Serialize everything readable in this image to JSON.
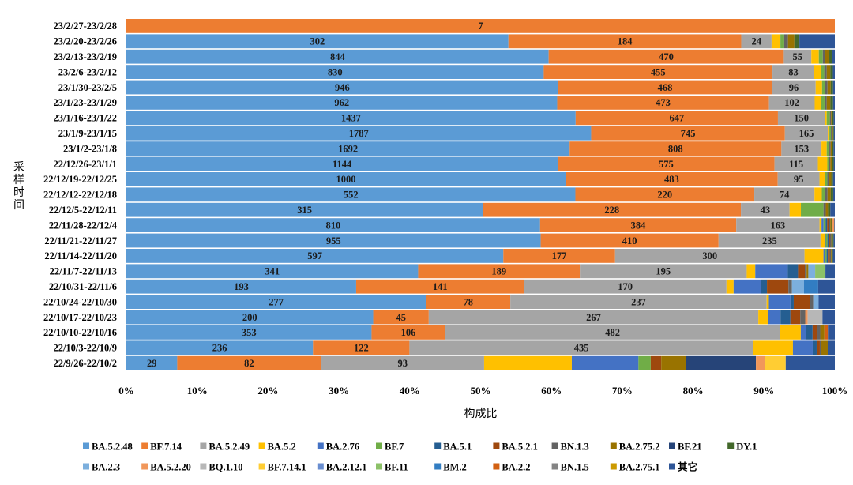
{
  "chart_data": {
    "type": "bar",
    "orientation": "horizontal",
    "stacking": "percent",
    "xlabel": "构成比",
    "ylabel": "采样时间",
    "xlim": [
      0,
      100
    ],
    "x_ticks": [
      "0%",
      "10%",
      "20%",
      "30%",
      "40%",
      "50%",
      "60%",
      "70%",
      "80%",
      "90%",
      "100%"
    ],
    "legend_position": "bottom",
    "categories": [
      "23/2/27-23/2/28",
      "23/2/20-23/2/26",
      "23/2/13-23/2/19",
      "23/2/6-23/2/12",
      "23/1/30-23/2/5",
      "23/1/23-23/1/29",
      "23/1/16-23/1/22",
      "23/1/9-23/1/15",
      "23/1/2-23/1/8",
      "22/12/26-23/1/1",
      "22/12/19-22/12/25",
      "22/12/12-22/12/18",
      "22/12/5-22/12/11",
      "22/11/28-22/12/4",
      "22/11/21-22/11/27",
      "22/11/14-22/11/20",
      "22/11/7-22/11/13",
      "22/10/31-22/11/6",
      "22/10/24-22/10/30",
      "22/10/17-22/10/23",
      "22/10/10-22/10/16",
      "22/10/3-22/10/9",
      "22/9/26-22/10/2"
    ],
    "series": [
      {
        "name": "BA.5.2.48",
        "color": "#5b9bd5",
        "values": [
          0,
          302,
          844,
          830,
          946,
          962,
          1437,
          1787,
          1692,
          1144,
          1000,
          552,
          315,
          810,
          955,
          597,
          341,
          193,
          277,
          200,
          353,
          236,
          29
        ]
      },
      {
        "name": "BF.7.14",
        "color": "#ed7d31",
        "values": [
          7,
          184,
          470,
          455,
          468,
          473,
          647,
          745,
          808,
          575,
          483,
          220,
          228,
          384,
          410,
          177,
          189,
          141,
          78,
          45,
          106,
          122,
          82
        ]
      },
      {
        "name": "BA.5.2.49",
        "color": "#a5a5a5",
        "values": [
          0,
          24,
          55,
          83,
          96,
          102,
          150,
          165,
          153,
          115,
          95,
          74,
          43,
          163,
          235,
          300,
          195,
          170,
          237,
          267,
          482,
          435,
          93
        ]
      },
      {
        "name": "BA.5.2",
        "color": "#ffc000",
        "values": [
          0,
          7,
          15,
          14,
          14,
          15,
          6,
          6,
          20,
          25,
          13,
          9,
          10,
          4,
          10,
          30,
          10,
          6,
          2,
          8,
          30,
          50,
          50
        ]
      },
      {
        "name": "BA.2.76",
        "color": "#4472c4",
        "values": [
          0,
          0,
          0,
          0,
          0,
          0,
          0,
          0,
          0,
          0,
          0,
          0,
          0,
          4,
          2,
          3,
          38,
          23,
          20,
          10,
          7,
          25,
          38
        ]
      },
      {
        "name": "BF.7",
        "color": "#70ad47",
        "values": [
          0,
          3,
          8,
          6,
          7,
          7,
          10,
          6,
          10,
          4,
          5,
          4,
          20,
          4,
          4,
          2,
          0,
          0,
          0,
          0,
          0,
          0,
          7
        ]
      },
      {
        "name": "BA.5.1",
        "color": "#255e91",
        "values": [
          0,
          0,
          0,
          0,
          0,
          0,
          0,
          0,
          0,
          0,
          0,
          0,
          0,
          3,
          3,
          2,
          12,
          5,
          3,
          8,
          10,
          5,
          0
        ]
      },
      {
        "name": "BA.5.2.1",
        "color": "#9e480e",
        "values": [
          0,
          0,
          0,
          0,
          0,
          0,
          0,
          0,
          0,
          0,
          0,
          0,
          0,
          3,
          3,
          3,
          8,
          18,
          15,
          8,
          7,
          4,
          6
        ]
      },
      {
        "name": "BN.1.3",
        "color": "#636363",
        "values": [
          0,
          3,
          5,
          5,
          5,
          5,
          4,
          4,
          5,
          4,
          4,
          3,
          2,
          3,
          3,
          2,
          2,
          3,
          3,
          4,
          4,
          2,
          0
        ]
      },
      {
        "name": "BA.2.75.2",
        "color": "#997300",
        "values": [
          0,
          5,
          8,
          7,
          7,
          8,
          4,
          4,
          6,
          5,
          5,
          4,
          2,
          2,
          3,
          2,
          2,
          0,
          0,
          0,
          6,
          8,
          14
        ]
      },
      {
        "name": "BF.21",
        "color": "#264478",
        "values": [
          0,
          0,
          0,
          0,
          0,
          0,
          0,
          0,
          0,
          0,
          0,
          0,
          0,
          0,
          0,
          0,
          0,
          0,
          0,
          0,
          0,
          0,
          40
        ]
      },
      {
        "name": "DY.1",
        "color": "#43682b",
        "values": [
          0,
          4,
          6,
          5,
          5,
          6,
          4,
          3,
          5,
          4,
          4,
          3,
          2,
          2,
          2,
          1,
          0,
          0,
          0,
          0,
          0,
          0,
          0
        ]
      },
      {
        "name": "BA.2.3",
        "color": "#7cafdd",
        "values": [
          0,
          0,
          0,
          0,
          0,
          0,
          0,
          0,
          0,
          0,
          0,
          0,
          0,
          0,
          0,
          0,
          8,
          10,
          5,
          0,
          0,
          0,
          0
        ]
      },
      {
        "name": "BA.5.2.20",
        "color": "#f1975a",
        "values": [
          0,
          0,
          0,
          0,
          0,
          0,
          0,
          0,
          0,
          0,
          0,
          0,
          0,
          4,
          0,
          0,
          0,
          0,
          0,
          2,
          0,
          0,
          5
        ]
      },
      {
        "name": "BQ.1.10",
        "color": "#b7b7b7",
        "values": [
          0,
          0,
          0,
          0,
          0,
          0,
          0,
          0,
          0,
          0,
          0,
          0,
          0,
          0,
          0,
          0,
          0,
          0,
          0,
          12,
          0,
          0,
          0
        ]
      },
      {
        "name": "BF.7.14.1",
        "color": "#ffcd33",
        "values": [
          0,
          0,
          0,
          0,
          0,
          0,
          0,
          0,
          0,
          0,
          0,
          0,
          0,
          0,
          0,
          0,
          0,
          0,
          0,
          0,
          0,
          0,
          12
        ]
      },
      {
        "name": "BA.2.12.1",
        "color": "#698ed0",
        "values": [
          0,
          0,
          0,
          0,
          0,
          0,
          0,
          0,
          0,
          0,
          0,
          0,
          0,
          0,
          0,
          0,
          0,
          0,
          0,
          0,
          0,
          0,
          0
        ]
      },
      {
        "name": "BF.11",
        "color": "#8cc168",
        "values": [
          0,
          0,
          0,
          0,
          0,
          0,
          0,
          0,
          0,
          0,
          0,
          0,
          0,
          0,
          0,
          0,
          12,
          0,
          0,
          0,
          0,
          0,
          0
        ]
      },
      {
        "name": "BM.2",
        "color": "#327dc2",
        "values": [
          0,
          0,
          0,
          0,
          0,
          0,
          0,
          0,
          0,
          0,
          0,
          0,
          0,
          0,
          0,
          0,
          0,
          12,
          0,
          0,
          0,
          0,
          0
        ]
      },
      {
        "name": "BA.2.2",
        "color": "#d26012",
        "values": [
          0,
          0,
          0,
          0,
          0,
          0,
          0,
          0,
          0,
          0,
          0,
          0,
          0,
          0,
          0,
          0,
          0,
          0,
          0,
          0,
          5,
          0,
          0
        ]
      },
      {
        "name": "BN.1.5",
        "color": "#848484",
        "values": [
          0,
          0,
          0,
          0,
          0,
          0,
          0,
          0,
          0,
          0,
          0,
          0,
          0,
          0,
          0,
          0,
          0,
          0,
          0,
          0,
          0,
          0,
          0
        ]
      },
      {
        "name": "BA.2.75.1",
        "color": "#cc9a00",
        "values": [
          0,
          0,
          0,
          0,
          0,
          0,
          0,
          0,
          0,
          0,
          0,
          0,
          0,
          0,
          0,
          0,
          0,
          0,
          0,
          0,
          0,
          0,
          0
        ]
      },
      {
        "name": "其它",
        "color": "#2e5597",
        "values": [
          0,
          28,
          5,
          4,
          4,
          4,
          4,
          4,
          5,
          3,
          4,
          2,
          4,
          1,
          3,
          3,
          11,
          14,
          15,
          10,
          10,
          9,
          28
        ]
      }
    ]
  }
}
